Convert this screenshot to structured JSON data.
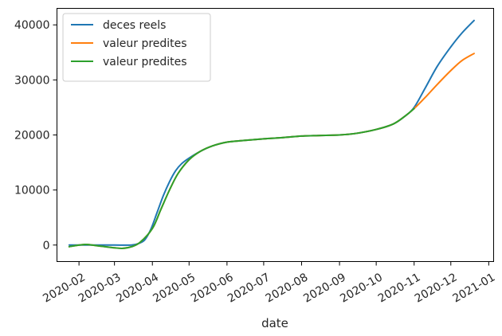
{
  "chart_data": {
    "type": "line",
    "title": "",
    "xlabel": "date",
    "ylabel": "",
    "xlim": [
      "2020-01-14",
      "2021-01-05"
    ],
    "ylim": [
      -3000,
      43000
    ],
    "x_ticks": [
      "2020-02-01",
      "2020-03-01",
      "2020-04-01",
      "2020-05-01",
      "2020-06-01",
      "2020-07-01",
      "2020-08-01",
      "2020-09-01",
      "2020-10-01",
      "2020-11-01",
      "2020-12-01",
      "2021-01-01"
    ],
    "x_tick_labels": [
      "2020-02",
      "2020-03",
      "2020-04",
      "2020-05",
      "2020-06",
      "2020-07",
      "2020-08",
      "2020-09",
      "2020-10",
      "2020-11",
      "2020-12",
      "2021-01"
    ],
    "y_ticks": [
      0,
      10000,
      20000,
      30000,
      40000
    ],
    "y_tick_labels": [
      "0",
      "10000",
      "20000",
      "30000",
      "40000"
    ],
    "grid": false,
    "legend": {
      "placement": "top-left"
    },
    "series": [
      {
        "name": "deces reels",
        "color": "#1f77b4",
        "points": [
          [
            "2020-01-24",
            0
          ],
          [
            "2020-02-15",
            0
          ],
          [
            "2020-03-01",
            0
          ],
          [
            "2020-03-15",
            0
          ],
          [
            "2020-03-21",
            300
          ],
          [
            "2020-03-26",
            1000
          ],
          [
            "2020-03-31",
            3000
          ],
          [
            "2020-04-05",
            6000
          ],
          [
            "2020-04-10",
            9000
          ],
          [
            "2020-04-15",
            11500
          ],
          [
            "2020-04-20",
            13500
          ],
          [
            "2020-04-25",
            14800
          ],
          [
            "2020-05-01",
            15800
          ],
          [
            "2020-05-10",
            17000
          ],
          [
            "2020-05-20",
            18000
          ],
          [
            "2020-06-01",
            18700
          ],
          [
            "2020-06-15",
            19000
          ],
          [
            "2020-07-01",
            19300
          ],
          [
            "2020-07-15",
            19500
          ],
          [
            "2020-08-01",
            19800
          ],
          [
            "2020-08-15",
            19900
          ],
          [
            "2020-09-01",
            20000
          ],
          [
            "2020-09-15",
            20300
          ],
          [
            "2020-10-01",
            21000
          ],
          [
            "2020-10-15",
            22000
          ],
          [
            "2020-10-25",
            23500
          ],
          [
            "2020-11-01",
            25000
          ],
          [
            "2020-11-10",
            28500
          ],
          [
            "2020-11-20",
            32500
          ],
          [
            "2020-12-01",
            36000
          ],
          [
            "2020-12-10",
            38500
          ],
          [
            "2020-12-20",
            40800
          ]
        ]
      },
      {
        "name": "valeur predites",
        "color": "#ff7f0e",
        "points": [
          [
            "2020-01-24",
            -300
          ],
          [
            "2020-02-05",
            100
          ],
          [
            "2020-02-15",
            -100
          ],
          [
            "2020-03-01",
            -500
          ],
          [
            "2020-03-08",
            -600
          ],
          [
            "2020-03-15",
            -300
          ],
          [
            "2020-03-22",
            500
          ],
          [
            "2020-04-01",
            3000
          ],
          [
            "2020-04-08",
            6500
          ],
          [
            "2020-04-15",
            10000
          ],
          [
            "2020-04-22",
            13000
          ],
          [
            "2020-05-01",
            15500
          ],
          [
            "2020-05-10",
            17000
          ],
          [
            "2020-05-20",
            18000
          ],
          [
            "2020-06-01",
            18700
          ],
          [
            "2020-06-15",
            19000
          ],
          [
            "2020-07-01",
            19300
          ],
          [
            "2020-07-15",
            19500
          ],
          [
            "2020-08-01",
            19800
          ],
          [
            "2020-08-15",
            19900
          ],
          [
            "2020-09-01",
            20000
          ],
          [
            "2020-09-15",
            20300
          ],
          [
            "2020-10-01",
            21000
          ],
          [
            "2020-10-15",
            22000
          ],
          [
            "2020-10-25",
            23500
          ],
          [
            "2020-11-01",
            24800
          ],
          [
            "2020-11-10",
            26800
          ],
          [
            "2020-11-20",
            29200
          ],
          [
            "2020-12-01",
            31700
          ],
          [
            "2020-12-10",
            33500
          ],
          [
            "2020-12-20",
            34800
          ]
        ]
      },
      {
        "name": "valeur predites",
        "color": "#2ca02c",
        "points": [
          [
            "2020-01-24",
            -300
          ],
          [
            "2020-02-05",
            100
          ],
          [
            "2020-02-15",
            -100
          ],
          [
            "2020-03-01",
            -500
          ],
          [
            "2020-03-08",
            -600
          ],
          [
            "2020-03-15",
            -300
          ],
          [
            "2020-03-22",
            500
          ],
          [
            "2020-04-01",
            3000
          ],
          [
            "2020-04-08",
            6500
          ],
          [
            "2020-04-15",
            10000
          ],
          [
            "2020-04-22",
            13000
          ],
          [
            "2020-05-01",
            15500
          ],
          [
            "2020-05-10",
            17000
          ],
          [
            "2020-05-20",
            18000
          ],
          [
            "2020-06-01",
            18700
          ],
          [
            "2020-06-15",
            19000
          ],
          [
            "2020-07-01",
            19300
          ],
          [
            "2020-07-15",
            19500
          ],
          [
            "2020-08-01",
            19800
          ],
          [
            "2020-08-15",
            19900
          ],
          [
            "2020-09-01",
            20000
          ],
          [
            "2020-09-15",
            20300
          ],
          [
            "2020-10-01",
            21000
          ],
          [
            "2020-10-15",
            22000
          ],
          [
            "2020-10-25",
            23500
          ],
          [
            "2020-11-01",
            24800
          ]
        ]
      }
    ]
  }
}
